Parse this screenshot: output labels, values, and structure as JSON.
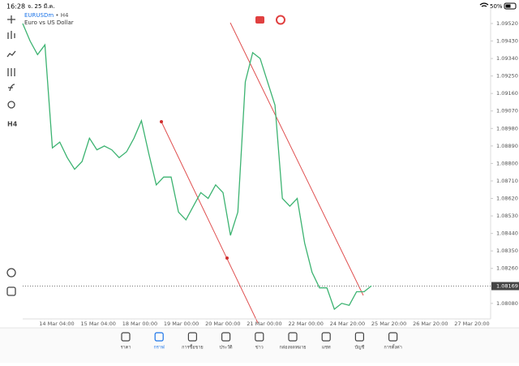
{
  "status_bar": {
    "time": "16:28",
    "date": "จ. 25 มี.ค.",
    "battery": "50%"
  },
  "chart": {
    "type": "line",
    "symbol": "EURUSDm",
    "period": "H4",
    "description": "Euro vs US Dollar",
    "color": "#3cb371",
    "values": [
      1.0952,
      1.0943,
      1.0936,
      1.0941,
      1.0888,
      1.0891,
      1.0883,
      1.0877,
      1.0881,
      1.0893,
      1.0887,
      1.0889,
      1.0887,
      1.0883,
      1.0886,
      1.0893,
      1.0902,
      1.0885,
      1.0869,
      1.0873,
      1.0873,
      1.0855,
      1.0851,
      1.0858,
      1.0865,
      1.0862,
      1.0869,
      1.0865,
      1.0843,
      1.0855,
      1.0922,
      1.0937,
      1.0934,
      1.0922,
      1.091,
      1.0862,
      1.0858,
      1.0862,
      1.0839,
      1.0824,
      1.0816,
      1.0816,
      1.0805,
      1.0808,
      1.0807,
      1.0814,
      1.0814,
      1.0817
    ],
    "ylim": [
      1.08,
      1.0957
    ],
    "yticks": [
      {
        "value": 1.0952,
        "label": "1.09520"
      },
      {
        "value": 1.0943,
        "label": "1.09430"
      },
      {
        "value": 1.0934,
        "label": "1.09340"
      },
      {
        "value": 1.0925,
        "label": "1.09250"
      },
      {
        "value": 1.0916,
        "label": "1.09160"
      },
      {
        "value": 1.0907,
        "label": "1.09070"
      },
      {
        "value": 1.0898,
        "label": "1.08980"
      },
      {
        "value": 1.0889,
        "label": "1.08890"
      },
      {
        "value": 1.088,
        "label": "1.08800"
      },
      {
        "value": 1.0871,
        "label": "1.08710"
      },
      {
        "value": 1.0862,
        "label": "1.08620"
      },
      {
        "value": 1.0853,
        "label": "1.08530"
      },
      {
        "value": 1.0844,
        "label": "1.08440"
      },
      {
        "value": 1.0835,
        "label": "1.08350"
      },
      {
        "value": 1.0826,
        "label": "1.08260"
      },
      {
        "value": 1.0808,
        "label": "1.08080"
      }
    ],
    "current_price": 1.08169,
    "xlabels": [
      "14 Mar 04:00",
      "15 Mar 04:00",
      "18 Mar 00:00",
      "19 Mar 00:00",
      "20 Mar 00:00",
      "21 Mar 00:00",
      "22 Mar 00:00",
      "24 Mar 20:00",
      "25 Mar 20:00",
      "26 Mar 20:00",
      "27 Mar 20:00"
    ]
  },
  "nav": {
    "items": [
      "ราคา",
      "กราฟ",
      "การซื้อขาย",
      "ประวัติ",
      "ข่าว",
      "กล่องจดหมาย",
      "แชท",
      "บัญชี",
      "การตั้งค่า"
    ],
    "active": 1
  }
}
